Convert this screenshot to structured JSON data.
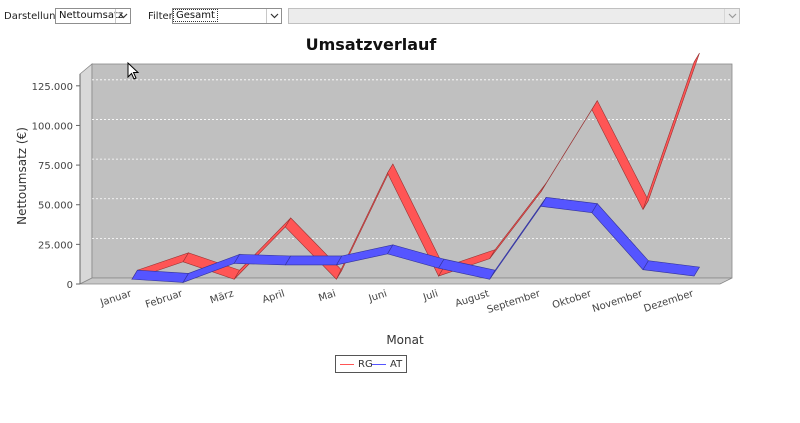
{
  "toolbar": {
    "darstellung_label": "Darstellung",
    "darstellung_value": "Nettoumsatz",
    "filter_label": "Filter",
    "filter_value": "Gesamt",
    "filter_detail_value": ""
  },
  "chart_data": {
    "type": "line",
    "title": "Umsatzverlauf",
    "xlabel": "Monat",
    "ylabel": "Nettoumsatz (€)",
    "ylim": [
      0,
      137500
    ],
    "yticks": [
      0,
      25000,
      50000,
      75000,
      100000,
      125000
    ],
    "ytick_labels": [
      "0",
      "25.000",
      "50.000",
      "75.000",
      "100.000",
      "125.000"
    ],
    "categories": [
      "Januar",
      "Februar",
      "März",
      "April",
      "Mai",
      "Juni",
      "Juli",
      "August",
      "September",
      "Oktober",
      "November",
      "Dezember"
    ],
    "series": [
      {
        "name": "RG",
        "color": "#ff5555",
        "values": [
          3000,
          14000,
          3000,
          36000,
          3000,
          70000,
          5000,
          16000,
          58000,
          110000,
          47000,
          140000
        ]
      },
      {
        "name": "AT",
        "color": "#5555ff",
        "values": [
          3000,
          1000,
          13000,
          12000,
          12000,
          19000,
          10000,
          3000,
          49000,
          45000,
          9000,
          5000
        ]
      }
    ],
    "grid": true,
    "legend_position": "bottom"
  }
}
